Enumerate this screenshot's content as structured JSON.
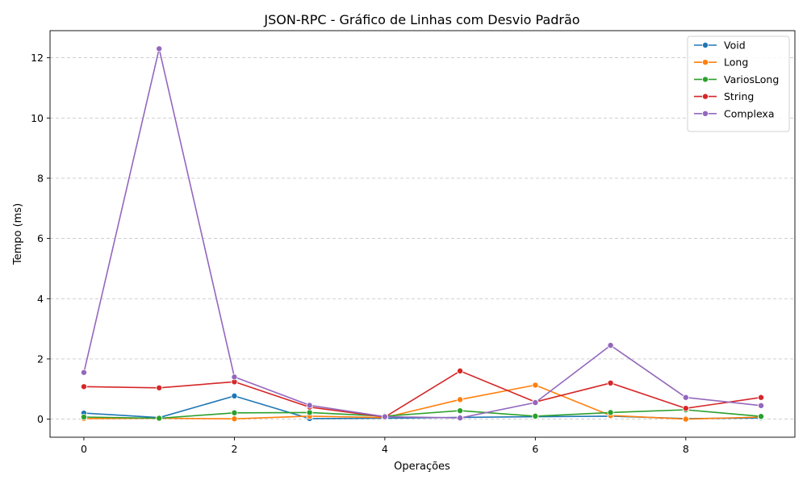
{
  "chart_data": {
    "type": "line",
    "title": "JSON-RPC - Gráfico de Linhas com Desvio Padrão",
    "xlabel": "Operações",
    "ylabel": "Tempo (ms)",
    "x": [
      0,
      1,
      2,
      3,
      4,
      5,
      6,
      7,
      8,
      9
    ],
    "xlim": [
      -0.45,
      9.45
    ],
    "ylim": [
      -0.6,
      12.9
    ],
    "xticks": [
      0,
      2,
      4,
      6,
      8
    ],
    "yticks": [
      0,
      2,
      4,
      6,
      8,
      10,
      12
    ],
    "grid": "horizontal dashed",
    "legend_position": "top-right",
    "marker": "circle",
    "series": [
      {
        "name": "Void",
        "color": "#1f77b4",
        "values": [
          0.2,
          0.05,
          0.77,
          0.02,
          0.03,
          0.06,
          0.08,
          0.1,
          0.02,
          0.04
        ]
      },
      {
        "name": "Long",
        "color": "#ff7f0e",
        "values": [
          0.02,
          0.03,
          0.01,
          0.1,
          0.05,
          0.65,
          1.13,
          0.12,
          0.0,
          0.07
        ]
      },
      {
        "name": "VariosLong",
        "color": "#2ca02c",
        "values": [
          0.07,
          0.03,
          0.21,
          0.22,
          0.1,
          0.28,
          0.1,
          0.22,
          0.31,
          0.09
        ]
      },
      {
        "name": "String",
        "color": "#d62728",
        "values": [
          1.08,
          1.04,
          1.24,
          0.4,
          0.07,
          1.6,
          0.57,
          1.2,
          0.36,
          0.72
        ]
      },
      {
        "name": "Complexa",
        "color": "#9467bd",
        "values": [
          1.55,
          12.3,
          1.4,
          0.46,
          0.08,
          0.04,
          0.55,
          2.45,
          0.72,
          0.45
        ]
      }
    ]
  }
}
